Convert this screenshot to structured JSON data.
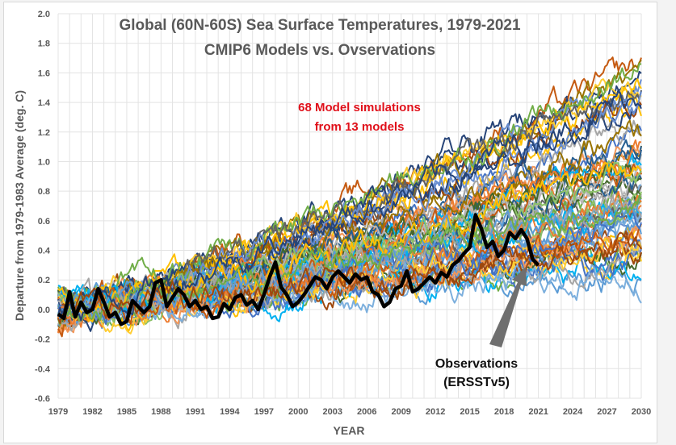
{
  "chart_data": {
    "type": "line",
    "title": "Global (60N-60S) Sea Surface Temperatures, 1979-2021",
    "subtitle": "CMIP6 Models vs. Ovservations",
    "xlabel": "YEAR",
    "ylabel": "Departure from 1979-1983 Average (deg. C)",
    "xlim": [
      1979,
      2030
    ],
    "ylim": [
      -0.6,
      2.0
    ],
    "y_ticks": [
      "-0.6",
      "-0.4",
      "-0.2",
      "0.0",
      "0.2",
      "0.4",
      "0.6",
      "0.8",
      "1.0",
      "1.2",
      "1.4",
      "1.6",
      "1.8",
      "2.0"
    ],
    "x_ticks": [
      "1979",
      "1982",
      "1985",
      "1988",
      "1991",
      "1994",
      "1997",
      "2000",
      "2003",
      "2006",
      "2009",
      "2012",
      "2015",
      "2018",
      "2021",
      "2024",
      "2027",
      "2030"
    ],
    "grid": true,
    "annotations": {
      "models": [
        "68 Model simulations",
        "from 13 models"
      ],
      "observations": [
        "Observations",
        "(ERSSTv5)"
      ]
    },
    "models": {
      "count": 68,
      "source_models": 13,
      "start_value": 0.0,
      "end_value_range": [
        0.2,
        1.7
      ],
      "colors": [
        "#4472c4",
        "#ed7d31",
        "#a5a5a5",
        "#ffc000",
        "#5b9bd5",
        "#70ad47",
        "#264478",
        "#9e480e",
        "#636363",
        "#997300",
        "#255e91",
        "#43682b",
        "#698ed0",
        "#f1975a",
        "#b7b7b7",
        "#ffcd33",
        "#7cafdd",
        "#8cc168",
        "#00b0f0",
        "#c55a11"
      ]
    },
    "series": [
      {
        "name": "Observations (ERSSTv5)",
        "color": "#000000",
        "x": [
          1979,
          1979.5,
          1980,
          1980.5,
          1981,
          1981.5,
          1982,
          1982.5,
          1983,
          1983.5,
          1984,
          1984.5,
          1985,
          1985.5,
          1986,
          1986.5,
          1987,
          1987.5,
          1988,
          1988.5,
          1989,
          1989.5,
          1990,
          1990.5,
          1991,
          1991.5,
          1992,
          1992.5,
          1993,
          1993.5,
          1994,
          1994.5,
          1995,
          1995.5,
          1996,
          1996.5,
          1997,
          1997.5,
          1998,
          1998.5,
          1999,
          1999.5,
          2000,
          2000.5,
          2001,
          2001.5,
          2002,
          2002.5,
          2003,
          2003.5,
          2004,
          2004.5,
          2005,
          2005.5,
          2006,
          2006.5,
          2007,
          2007.5,
          2008,
          2008.5,
          2009,
          2009.5,
          2010,
          2010.5,
          2011,
          2011.5,
          2012,
          2012.5,
          2013,
          2013.5,
          2014,
          2014.5,
          2015,
          2015.5,
          2016,
          2016.5,
          2017,
          2017.5,
          2018,
          2018.5,
          2019,
          2019.5,
          2020,
          2020.5,
          2021
        ],
        "values": [
          -0.03,
          -0.06,
          0.12,
          -0.05,
          0.05,
          -0.02,
          0.0,
          0.14,
          0.05,
          -0.05,
          -0.02,
          -0.1,
          -0.08,
          0.06,
          0.02,
          -0.02,
          0.02,
          0.18,
          0.2,
          0.02,
          0.08,
          0.14,
          0.1,
          0.02,
          0.06,
          0.0,
          0.02,
          -0.06,
          -0.05,
          0.04,
          0.0,
          0.08,
          0.1,
          0.03,
          0.06,
          0.0,
          0.1,
          0.22,
          0.32,
          0.15,
          0.1,
          0.02,
          0.05,
          0.1,
          0.16,
          0.22,
          0.2,
          0.14,
          0.22,
          0.26,
          0.22,
          0.18,
          0.24,
          0.2,
          0.22,
          0.12,
          0.1,
          0.02,
          0.05,
          0.14,
          0.16,
          0.26,
          0.12,
          0.14,
          0.18,
          0.22,
          0.18,
          0.25,
          0.22,
          0.3,
          0.33,
          0.38,
          0.42,
          0.64,
          0.55,
          0.42,
          0.46,
          0.36,
          0.4,
          0.52,
          0.48,
          0.54,
          0.48,
          0.34,
          0.3
        ]
      }
    ]
  }
}
